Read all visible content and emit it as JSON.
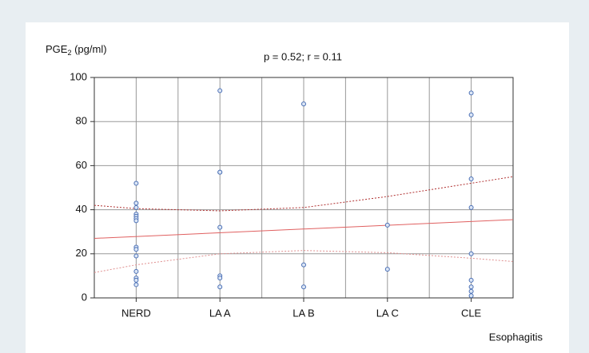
{
  "chart_data": {
    "type": "scatter",
    "y_label": {
      "main": "PGE",
      "sub": "2",
      "rest": " (pg/ml)"
    },
    "annotation": "p = 0.52;  r = 0.11",
    "x_label": "Esophagitis",
    "xlim": [
      0.5,
      5.5
    ],
    "xticks": [
      {
        "value": 1,
        "label": "NERD"
      },
      {
        "value": 2,
        "label": "LA A"
      },
      {
        "value": 3,
        "label": "LA B"
      },
      {
        "value": 4,
        "label": "LA C"
      },
      {
        "value": 5,
        "label": "CLE"
      }
    ],
    "xgrid": [
      1,
      1.5,
      2,
      2.5,
      3,
      3.5,
      4,
      4.5,
      5
    ],
    "ylim": [
      0,
      100
    ],
    "yticks": [
      0,
      20,
      40,
      60,
      80,
      100
    ],
    "grid": true,
    "series": [
      {
        "color": "#4a6fb5",
        "x": [
          1,
          1,
          1,
          1,
          1,
          1,
          1,
          1,
          1,
          1,
          1,
          1,
          1,
          1,
          2,
          2,
          2,
          2,
          2,
          2,
          2,
          3,
          3,
          3,
          4,
          4,
          5,
          5,
          5,
          5,
          5,
          5,
          5,
          5,
          5
        ],
        "values": [
          52,
          43,
          41,
          38,
          37,
          36,
          35,
          23,
          22,
          19,
          12,
          9,
          8,
          6,
          94,
          57,
          57,
          32,
          10,
          9,
          5,
          88,
          15,
          5,
          33,
          13,
          93,
          83,
          54,
          41,
          20,
          8,
          5,
          3,
          1
        ]
      }
    ],
    "fit": {
      "color": "#e06060",
      "x": [
        0.5,
        5.5
      ],
      "values": [
        27,
        35.5
      ]
    },
    "upper_band": {
      "color": "#b03030",
      "x": [
        0.5,
        1,
        2,
        3,
        4,
        5,
        5.5
      ],
      "values": [
        42,
        40.5,
        39.5,
        41,
        46,
        52,
        55
      ]
    },
    "lower_band": {
      "color": "#e09090",
      "x": [
        0.5,
        1,
        2,
        3,
        4,
        5,
        5.5
      ],
      "values": [
        11.5,
        15,
        20,
        21.5,
        20.5,
        18,
        16.5
      ]
    }
  }
}
